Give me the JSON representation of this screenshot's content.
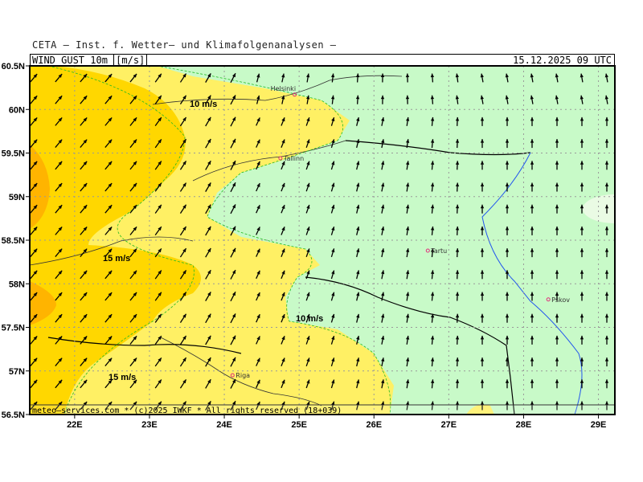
{
  "header": {
    "organization": "CETA — Inst. f. Wetter— und Klimafolgenanalysen —",
    "parameter": "WIND_GUST_10m_",
    "unit": "[m/s]",
    "valid_time": "15.12.2025 09 UTC"
  },
  "footer": {
    "credit": "meteo—services.com * (c)2025 IWKF * All rights reserved (18+039)"
  },
  "axes": {
    "lat_ticks": [
      "60.5N",
      "60N",
      "59.5N",
      "59N",
      "58.5N",
      "58N",
      "57.5N",
      "57N",
      "56.5N"
    ],
    "lon_ticks": [
      "22E",
      "23E",
      "24E",
      "25E",
      "26E",
      "27E",
      "28E",
      "29E"
    ]
  },
  "contour_labels": [
    "10 m/s",
    "15 m/s",
    "10 m/s",
    "15 m/s"
  ],
  "cities": [
    {
      "name": "Helsinki",
      "lon": 24.94,
      "lat": 60.17
    },
    {
      "name": "Tallinn",
      "lon": 24.75,
      "lat": 59.44
    },
    {
      "name": "Tartu",
      "lon": 26.72,
      "lat": 58.38
    },
    {
      "name": "Pskov",
      "lon": 28.33,
      "lat": 57.82
    },
    {
      "name": "Riga",
      "lon": 24.11,
      "lat": 56.95
    }
  ],
  "colors": {
    "below_10": "#c8fac8",
    "10_to_15": "#fff064",
    "15_to_20": "#ffd700",
    "20_plus": "#ffb400",
    "city_marker": "#e0307a"
  }
}
